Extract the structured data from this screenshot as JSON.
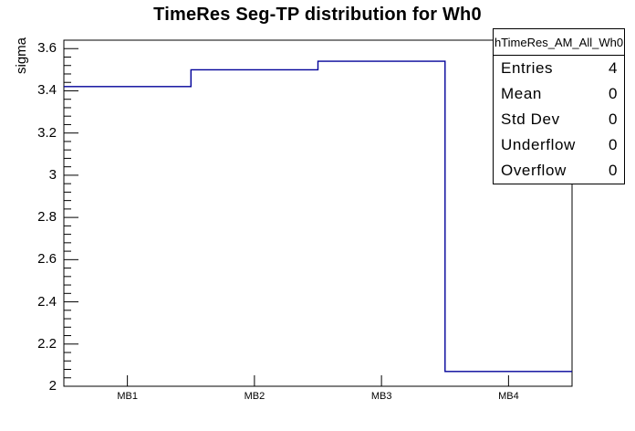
{
  "title": "TimeRes Seg-TP distribution for Wh0",
  "y_axis": {
    "label": "sigma",
    "ticks": [
      {
        "v": 2.0,
        "label": "2"
      },
      {
        "v": 2.2,
        "label": "2.2"
      },
      {
        "v": 2.4,
        "label": "2.4"
      },
      {
        "v": 2.6,
        "label": "2.6"
      },
      {
        "v": 2.8,
        "label": "2.8"
      },
      {
        "v": 3.0,
        "label": "3"
      },
      {
        "v": 3.2,
        "label": "3.2"
      },
      {
        "v": 3.4,
        "label": "3.4"
      },
      {
        "v": 3.6,
        "label": "3.6"
      }
    ],
    "minor_step": 0.04
  },
  "chart_data": {
    "type": "line",
    "style": "step-histogram",
    "title": "TimeRes Seg-TP distribution for Wh0",
    "ylabel": "sigma",
    "xlabel": "",
    "categories": [
      "MB1",
      "MB2",
      "MB3",
      "MB4"
    ],
    "values": [
      3.42,
      3.5,
      3.54,
      2.07
    ],
    "ylim": [
      2.0,
      3.64
    ],
    "grid": false,
    "legend_position": "none",
    "line_color": "#000099"
  },
  "stats_box": {
    "header": "hTimeRes_AM_All_Wh0",
    "rows": [
      {
        "label": "Entries",
        "value": "4"
      },
      {
        "label": "Mean",
        "value": "0"
      },
      {
        "label": "Std Dev",
        "value": "0"
      },
      {
        "label": "Underflow",
        "value": "0"
      },
      {
        "label": "Overflow",
        "value": "0"
      }
    ]
  },
  "colors": {
    "histogram_line": "#000099",
    "frame": "#000000",
    "background": "#ffffff",
    "text": "#000000"
  }
}
